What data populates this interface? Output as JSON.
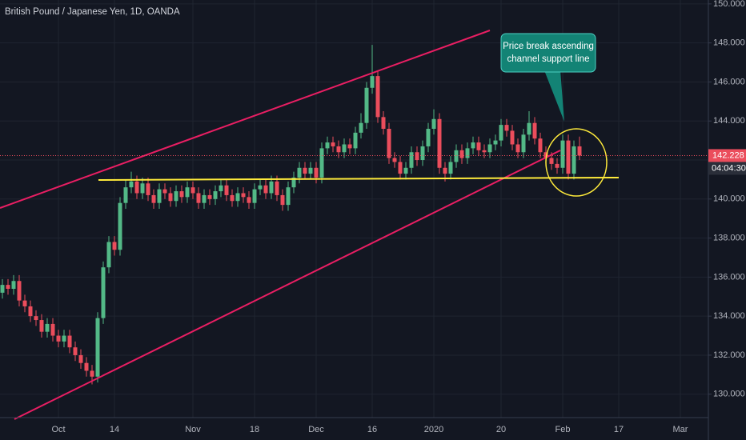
{
  "chart_data": {
    "type": "candlestick",
    "title": "British Pound / Japanese Yen, 1D, OANDA",
    "annotation": [
      "Price break ascending",
      "channel support line"
    ],
    "last_price": 142.228,
    "countdown": "04:04:30",
    "up_color": "#53b987",
    "down_color": "#eb4d5c",
    "grid": true,
    "categories": [
      null,
      null,
      null,
      null,
      null,
      null,
      null,
      null,
      null,
      null,
      "Oct",
      null,
      null,
      null,
      null,
      null,
      null,
      null,
      null,
      null,
      "14",
      null,
      null,
      null,
      null,
      null,
      null,
      null,
      null,
      null,
      null,
      null,
      null,
      null,
      "Nov",
      null,
      null,
      null,
      null,
      null,
      null,
      null,
      null,
      null,
      null,
      "18",
      null,
      null,
      null,
      null,
      null,
      null,
      null,
      null,
      null,
      null,
      "Dec",
      null,
      null,
      null,
      null,
      null,
      null,
      null,
      null,
      null,
      "16",
      null,
      null,
      null,
      null,
      null,
      null,
      null,
      null,
      null,
      null,
      "2020",
      null,
      null,
      null,
      null,
      null,
      null,
      null,
      null,
      null,
      null,
      null,
      "20",
      null,
      null,
      null,
      null,
      null,
      null,
      null,
      null,
      null,
      null,
      "Feb",
      null,
      null,
      null,
      null,
      null,
      null,
      null,
      null,
      null,
      "17",
      null,
      null,
      null,
      null,
      null,
      null,
      null,
      null,
      null,
      null,
      "Mar",
      null,
      null,
      null,
      null
    ],
    "open": [
      135.2,
      135.6,
      135.4,
      135.8,
      134.8,
      134.5,
      134.0,
      133.8,
      133.2,
      133.6,
      133.0,
      132.7,
      133.0,
      132.4,
      132.0,
      131.6,
      131.2,
      130.9,
      133.9,
      136.5,
      137.8,
      137.4,
      139.8,
      140.6,
      140.9,
      140.3,
      140.8,
      140.2,
      139.8,
      140.5,
      140.3,
      139.9,
      140.4,
      140.1,
      140.6,
      140.3,
      139.8,
      140.2,
      140.0,
      140.4,
      140.7,
      140.2,
      139.9,
      140.3,
      140.1,
      139.8,
      140.5,
      140.7,
      140.3,
      140.9,
      140.2,
      139.7,
      140.6,
      141.1,
      141.6,
      141.3,
      141.6,
      141.1,
      142.6,
      142.9,
      142.7,
      142.4,
      142.8,
      142.6,
      143.4,
      143.9,
      145.7,
      146.3,
      144.2,
      143.6,
      142.1,
      141.9,
      141.3,
      141.6,
      142.4,
      142.0,
      142.7,
      143.6,
      144.1,
      141.6,
      141.3,
      141.9,
      142.5,
      142.1,
      142.6,
      142.9,
      142.5,
      142.4,
      142.8,
      143.0,
      143.8,
      143.5,
      142.8,
      142.4,
      143.3,
      143.9,
      143.1,
      142.4,
      142.1,
      141.8,
      141.6,
      143.0,
      141.3,
      142.7,
      null,
      null,
      null,
      null,
      null,
      null,
      null,
      null,
      null,
      null,
      null,
      null,
      null,
      null,
      null,
      null,
      null,
      null,
      null,
      null,
      null,
      null
    ],
    "high": [
      135.9,
      135.9,
      136.1,
      136.1,
      135.1,
      134.8,
      134.3,
      134.1,
      133.9,
      133.9,
      133.3,
      133.3,
      133.3,
      132.7,
      132.3,
      131.9,
      131.5,
      134.2,
      136.8,
      138.1,
      138.1,
      140.1,
      141.0,
      141.4,
      141.2,
      141.1,
      141.1,
      140.5,
      140.8,
      140.8,
      140.6,
      140.7,
      140.7,
      140.9,
      140.9,
      140.6,
      140.5,
      140.5,
      140.7,
      141.0,
      141.0,
      140.5,
      140.6,
      140.6,
      140.4,
      140.8,
      141.0,
      141.0,
      141.2,
      141.2,
      140.5,
      140.9,
      141.4,
      141.9,
      141.9,
      141.9,
      141.9,
      142.9,
      143.2,
      143.2,
      143.0,
      143.1,
      143.1,
      143.7,
      144.4,
      146.0,
      147.9,
      146.6,
      144.5,
      143.9,
      142.4,
      142.2,
      141.9,
      142.7,
      142.7,
      143.0,
      143.9,
      144.6,
      144.4,
      141.9,
      142.2,
      142.8,
      142.8,
      142.9,
      143.2,
      143.2,
      142.8,
      143.1,
      143.3,
      144.1,
      144.1,
      143.8,
      143.1,
      143.6,
      144.5,
      144.2,
      143.4,
      142.7,
      142.4,
      142.1,
      143.3,
      143.3,
      143.0,
      143.2,
      null,
      null,
      null,
      null,
      null,
      null,
      null,
      null,
      null,
      null,
      null,
      null,
      null,
      null,
      null,
      null,
      null,
      null,
      null,
      null,
      null,
      null
    ],
    "low": [
      134.9,
      135.1,
      135.1,
      134.5,
      134.2,
      133.7,
      133.5,
      132.9,
      132.9,
      132.7,
      132.4,
      132.4,
      132.1,
      131.7,
      131.3,
      130.9,
      130.5,
      130.6,
      133.6,
      136.2,
      137.1,
      137.1,
      139.5,
      140.3,
      140.0,
      140.0,
      139.9,
      139.5,
      139.5,
      140.0,
      139.6,
      139.6,
      139.8,
      139.8,
      140.0,
      139.5,
      139.5,
      139.7,
      139.7,
      140.1,
      139.9,
      139.6,
      139.6,
      139.8,
      139.5,
      139.5,
      140.2,
      140.0,
      140.0,
      139.9,
      139.4,
      139.4,
      140.3,
      140.8,
      141.0,
      141.0,
      140.8,
      140.8,
      142.3,
      142.4,
      142.1,
      142.1,
      142.3,
      142.3,
      143.1,
      143.6,
      145.4,
      143.9,
      143.3,
      141.8,
      141.6,
      141.0,
      141.0,
      141.3,
      141.7,
      141.7,
      142.4,
      143.3,
      141.3,
      140.9,
      141.0,
      141.6,
      141.8,
      141.8,
      142.3,
      142.2,
      142.1,
      142.1,
      142.5,
      142.7,
      143.2,
      142.5,
      142.1,
      142.1,
      143.0,
      142.8,
      142.1,
      141.8,
      141.5,
      141.3,
      141.3,
      141.0,
      141.0,
      142.0,
      null,
      null,
      null,
      null,
      null,
      null,
      null,
      null,
      null,
      null,
      null,
      null,
      null,
      null,
      null,
      null,
      null,
      null,
      null,
      null,
      null,
      null
    ],
    "close": [
      135.6,
      135.4,
      135.8,
      134.8,
      134.5,
      134.0,
      133.8,
      133.2,
      133.6,
      133.0,
      132.7,
      133.0,
      132.4,
      132.0,
      131.6,
      131.2,
      130.9,
      133.9,
      136.5,
      137.8,
      137.4,
      139.8,
      140.6,
      140.9,
      140.3,
      140.8,
      140.2,
      139.8,
      140.5,
      140.3,
      139.9,
      140.4,
      140.1,
      140.6,
      140.3,
      139.8,
      140.2,
      140.0,
      140.4,
      140.7,
      140.2,
      139.9,
      140.3,
      140.1,
      139.8,
      140.5,
      140.7,
      140.3,
      140.9,
      140.2,
      139.7,
      140.6,
      141.1,
      141.6,
      141.3,
      141.6,
      141.1,
      142.6,
      142.9,
      142.7,
      142.4,
      142.8,
      142.6,
      143.4,
      143.9,
      145.7,
      146.3,
      144.2,
      143.6,
      142.1,
      141.9,
      141.3,
      141.6,
      142.4,
      142.0,
      142.7,
      143.6,
      144.1,
      141.6,
      141.3,
      141.9,
      142.5,
      142.1,
      142.6,
      142.9,
      142.5,
      142.4,
      142.8,
      143.0,
      143.8,
      143.5,
      142.8,
      142.4,
      143.3,
      143.9,
      143.1,
      142.4,
      142.1,
      141.8,
      141.6,
      143.0,
      141.3,
      142.7,
      142.228,
      null,
      null,
      null,
      null,
      null,
      null,
      null,
      null,
      null,
      null,
      null,
      null,
      null,
      null,
      null,
      null,
      null,
      null,
      null,
      null,
      null,
      null
    ],
    "ylim": [
      128.8,
      150.2
    ],
    "yticks": [
      {
        "value": 130,
        "label": "130.000"
      },
      {
        "value": 132,
        "label": "132.000"
      },
      {
        "value": 134,
        "label": "134.000"
      },
      {
        "value": 136,
        "label": "136.000"
      },
      {
        "value": 138,
        "label": "138.000"
      },
      {
        "value": 140,
        "label": "140.000"
      },
      {
        "value": 142,
        "label": "142.000"
      },
      {
        "value": 144,
        "label": "144.000"
      },
      {
        "value": 146,
        "label": "146.000"
      },
      {
        "value": 148,
        "label": "148.000"
      },
      {
        "value": 150,
        "label": "150.000"
      }
    ]
  }
}
